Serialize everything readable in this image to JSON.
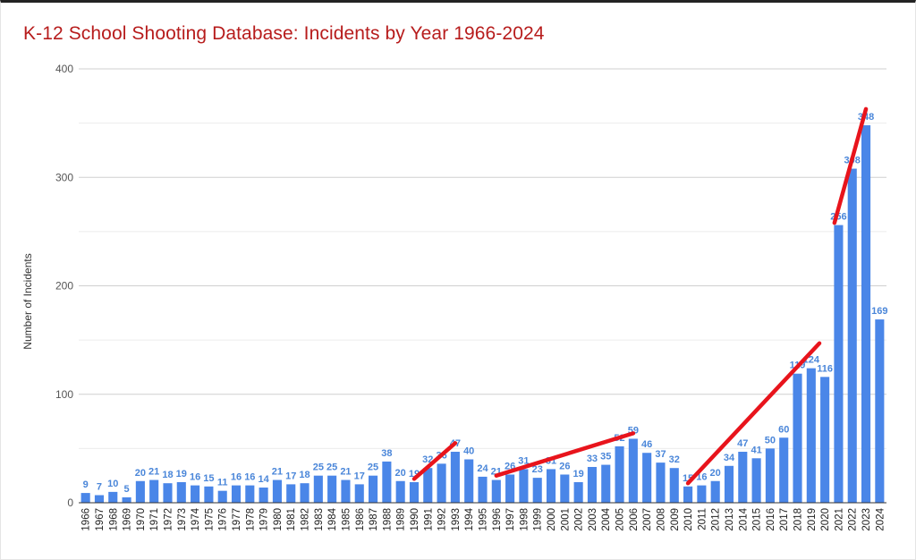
{
  "chart_data": {
    "type": "bar",
    "title": "K-12 School Shooting Database: Incidents by Year 1966-2024",
    "xlabel": "",
    "ylabel": "Number of Incidents",
    "ylim": [
      0,
      400
    ],
    "yticks": [
      "0",
      "100",
      "200",
      "300",
      "400"
    ],
    "grid": true,
    "legend": "none",
    "categories": [
      "1966",
      "1967",
      "1968",
      "1969",
      "1970",
      "1971",
      "1972",
      "1973",
      "1974",
      "1975",
      "1976",
      "1977",
      "1978",
      "1979",
      "1980",
      "1981",
      "1982",
      "1983",
      "1984",
      "1985",
      "1986",
      "1987",
      "1988",
      "1989",
      "1990",
      "1991",
      "1992",
      "1993",
      "1994",
      "1995",
      "1996",
      "1997",
      "1998",
      "1999",
      "2000",
      "2001",
      "2002",
      "2003",
      "2004",
      "2005",
      "2006",
      "2007",
      "2008",
      "2009",
      "2010",
      "2011",
      "2012",
      "2013",
      "2014",
      "2015",
      "2016",
      "2017",
      "2018",
      "2019",
      "2020",
      "2021",
      "2022",
      "2023",
      "2024"
    ],
    "values": [
      9,
      7,
      10,
      5,
      20,
      21,
      18,
      19,
      16,
      15,
      11,
      16,
      16,
      14,
      21,
      17,
      18,
      25,
      25,
      21,
      17,
      25,
      38,
      20,
      19,
      32,
      36,
      47,
      40,
      24,
      21,
      26,
      31,
      23,
      31,
      26,
      19,
      33,
      35,
      52,
      59,
      46,
      37,
      32,
      15,
      16,
      20,
      34,
      47,
      41,
      50,
      60,
      119,
      124,
      116,
      256,
      308,
      348,
      169
    ],
    "data_labels": [
      "9",
      "7",
      "10",
      "5",
      "20",
      "21",
      "18",
      "19",
      "16",
      "15",
      "11",
      "16",
      "16",
      "14",
      "21",
      "17",
      "18",
      "25",
      "25",
      "21",
      "17",
      "25",
      "38",
      "20",
      "19",
      "32",
      "36",
      "47",
      "40",
      "24",
      "21",
      "26",
      "31",
      "23",
      "31",
      "26",
      "19",
      "33",
      "35",
      "52",
      "59",
      "46",
      "37",
      "32",
      "15",
      "16",
      "20",
      "34",
      "47",
      "41",
      "50",
      "60",
      "119",
      "124",
      "116",
      "256",
      "308",
      "348",
      "169"
    ],
    "bar_color": "#4a86e8",
    "annotation_color": "#e8141c",
    "trend_annotations": [
      {
        "from_year": 1990,
        "from_value": 22,
        "to_year": 1993,
        "to_value": 55
      },
      {
        "from_year": 1996,
        "from_value": 25,
        "to_year": 2006,
        "to_value": 64
      },
      {
        "from_year": 2010,
        "from_value": 18,
        "to_year": 2019.6,
        "to_value": 147
      },
      {
        "from_year": 2020.7,
        "from_value": 258,
        "to_year": 2023,
        "to_value": 363
      }
    ]
  }
}
